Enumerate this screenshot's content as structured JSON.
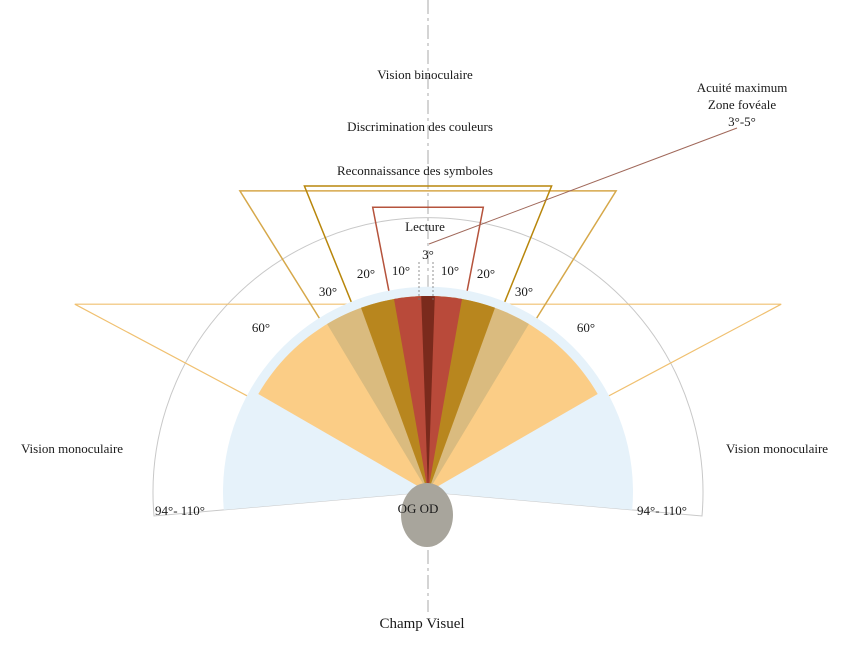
{
  "title": "Champ Visuel",
  "zones": {
    "binocular": "Vision binoculaire",
    "colors": "Discrimination des couleurs",
    "symbols": "Reconnaissance des symboles",
    "reading": "Lecture",
    "monocular_left": "Vision monoculaire",
    "monocular_right": "Vision monoculaire"
  },
  "fovea": {
    "line1": "Acuité maximum",
    "line2": "Zone fovéale",
    "line3": "3°-5°",
    "angle_label": "3°"
  },
  "angles": {
    "left_10": "10°",
    "right_10": "10°",
    "left_20": "20°",
    "right_20": "20°",
    "left_30": "30°",
    "right_30": "30°",
    "left_60": "60°",
    "right_60": "60°",
    "left_mono": "94°- 110°",
    "right_mono": "94°- 110°"
  },
  "eyes": "OG OD",
  "colors": {
    "binocular_outline": "#f0c070",
    "colors_outline": "#d6a84a",
    "symbols_outline": "#b8860b",
    "reading_outline": "#b5533c",
    "fan_60": "#fbcd86",
    "fan_30": "#d8b97e",
    "fan_20": "#b8861e",
    "fan_10": "#b94a3a",
    "fan_3": "#7a2a1c",
    "monocular_fill": "#e6f2fa",
    "monocular_outline": "#c8c8c8",
    "eye": "#a8a59c",
    "axis": "#aaaaaa",
    "pointer": "#a0685a"
  }
}
